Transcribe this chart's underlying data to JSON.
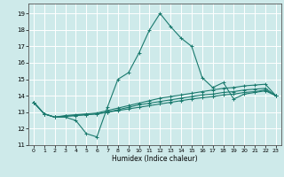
{
  "title": "",
  "xlabel": "Humidex (Indice chaleur)",
  "ylabel": "",
  "xlim": [
    -0.5,
    23.5
  ],
  "ylim": [
    11,
    19.6
  ],
  "yticks": [
    11,
    12,
    13,
    14,
    15,
    16,
    17,
    18,
    19
  ],
  "xticks": [
    0,
    1,
    2,
    3,
    4,
    5,
    6,
    7,
    8,
    9,
    10,
    11,
    12,
    13,
    14,
    15,
    16,
    17,
    18,
    19,
    20,
    21,
    22,
    23
  ],
  "bg_color": "#ceeaea",
  "grid_color": "#ffffff",
  "line_color": "#1a7a6e",
  "lines": [
    {
      "x": [
        0,
        1,
        2,
        3,
        4,
        5,
        6,
        7,
        8,
        9,
        10,
        11,
        12,
        13,
        14,
        15,
        16,
        17,
        18,
        19,
        20,
        21,
        22,
        23
      ],
      "y": [
        13.6,
        12.9,
        12.7,
        12.7,
        12.5,
        11.7,
        11.5,
        13.3,
        15.0,
        15.4,
        16.6,
        18.0,
        19.0,
        18.2,
        17.5,
        17.0,
        15.1,
        14.5,
        14.8,
        13.8,
        14.1,
        14.2,
        14.3,
        14.0
      ]
    },
    {
      "x": [
        0,
        1,
        2,
        3,
        4,
        5,
        6,
        7,
        8,
        9,
        10,
        11,
        12,
        13,
        14,
        15,
        16,
        17,
        18,
        19,
        20,
        21,
        22,
        23
      ],
      "y": [
        13.6,
        12.9,
        12.7,
        12.8,
        12.85,
        12.9,
        12.95,
        13.1,
        13.25,
        13.4,
        13.55,
        13.7,
        13.85,
        13.95,
        14.05,
        14.15,
        14.25,
        14.35,
        14.45,
        14.5,
        14.6,
        14.65,
        14.7,
        14.0
      ]
    },
    {
      "x": [
        0,
        1,
        2,
        3,
        4,
        5,
        6,
        7,
        8,
        9,
        10,
        11,
        12,
        13,
        14,
        15,
        16,
        17,
        18,
        19,
        20,
        21,
        22,
        23
      ],
      "y": [
        13.6,
        12.9,
        12.7,
        12.75,
        12.8,
        12.85,
        12.9,
        13.0,
        13.15,
        13.3,
        13.45,
        13.55,
        13.65,
        13.75,
        13.85,
        13.95,
        14.05,
        14.1,
        14.2,
        14.25,
        14.35,
        14.4,
        14.45,
        14.0
      ]
    },
    {
      "x": [
        0,
        1,
        2,
        3,
        4,
        5,
        6,
        7,
        8,
        9,
        10,
        11,
        12,
        13,
        14,
        15,
        16,
        17,
        18,
        19,
        20,
        21,
        22,
        23
      ],
      "y": [
        13.6,
        12.9,
        12.7,
        12.75,
        12.8,
        12.85,
        12.9,
        13.0,
        13.1,
        13.2,
        13.3,
        13.4,
        13.5,
        13.6,
        13.7,
        13.8,
        13.88,
        13.95,
        14.05,
        14.1,
        14.2,
        14.25,
        14.35,
        14.0
      ]
    }
  ]
}
